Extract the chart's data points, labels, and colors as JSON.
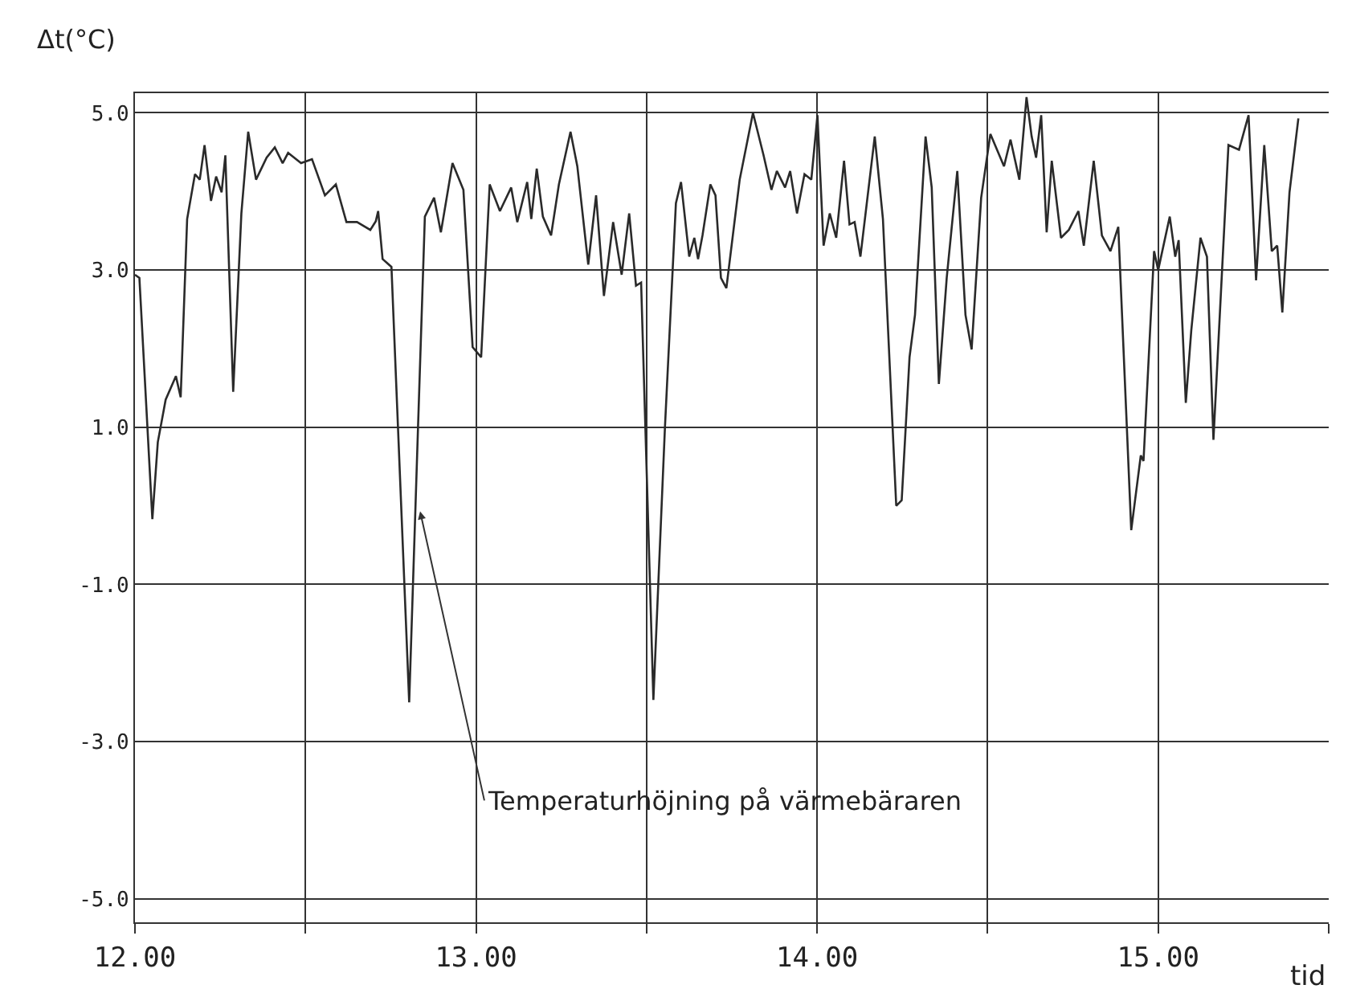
{
  "chart_data": {
    "type": "line",
    "ylabel": "Δt(°C)",
    "xlabel": "tid",
    "x": [
      12.0,
      12.013,
      12.051,
      12.067,
      12.09,
      12.12,
      12.134,
      12.153,
      12.176,
      12.19,
      12.204,
      12.223,
      12.238,
      12.254,
      12.265,
      12.288,
      12.312,
      12.332,
      12.355,
      12.386,
      12.41,
      12.433,
      12.449,
      12.487,
      12.519,
      12.557,
      12.589,
      12.62,
      12.651,
      12.69,
      12.706,
      12.713,
      12.726,
      12.752,
      12.804,
      12.83,
      12.85,
      12.877,
      12.897,
      12.931,
      12.963,
      12.99,
      13.015,
      13.04,
      13.07,
      13.103,
      13.121,
      13.15,
      13.162,
      13.178,
      13.196,
      13.22,
      13.243,
      13.277,
      13.297,
      13.329,
      13.352,
      13.375,
      13.402,
      13.427,
      13.449,
      13.469,
      13.484,
      13.52,
      13.554,
      13.586,
      13.601,
      13.625,
      13.64,
      13.651,
      13.664,
      13.687,
      13.702,
      13.718,
      13.734,
      13.773,
      13.812,
      13.843,
      13.866,
      13.882,
      13.906,
      13.921,
      13.941,
      13.963,
      13.983,
      14.001,
      14.019,
      14.037,
      14.056,
      14.079,
      14.095,
      14.11,
      14.127,
      14.169,
      14.193,
      14.232,
      14.248,
      14.271,
      14.287,
      14.318,
      14.336,
      14.357,
      14.38,
      14.411,
      14.435,
      14.453,
      14.481,
      14.508,
      14.548,
      14.567,
      14.593,
      14.614,
      14.629,
      14.642,
      14.657,
      14.673,
      14.688,
      14.715,
      14.738,
      14.766,
      14.782,
      14.811,
      14.835,
      14.86,
      14.883,
      14.921,
      14.949,
      14.957,
      14.988,
      15.0,
      15.034,
      15.05,
      15.06,
      15.081,
      15.097,
      15.124,
      15.143,
      15.162,
      15.206,
      15.237,
      15.265,
      15.287,
      15.311,
      15.333,
      15.349,
      15.364,
      15.385,
      15.411
    ],
    "values": [
      2.94,
      2.9,
      -0.17,
      0.81,
      1.35,
      1.65,
      1.38,
      3.65,
      4.22,
      4.15,
      4.59,
      3.88,
      4.19,
      3.99,
      4.46,
      1.45,
      3.72,
      4.76,
      4.15,
      4.43,
      4.56,
      4.36,
      4.49,
      4.36,
      4.41,
      3.95,
      4.09,
      3.61,
      3.61,
      3.51,
      3.62,
      3.75,
      3.14,
      3.04,
      -2.5,
      1.01,
      3.68,
      3.92,
      3.48,
      4.36,
      4.02,
      2.02,
      1.89,
      4.09,
      3.75,
      4.05,
      3.61,
      4.12,
      3.65,
      4.29,
      3.68,
      3.44,
      4.09,
      4.76,
      4.32,
      3.07,
      3.95,
      2.67,
      3.61,
      2.94,
      3.72,
      2.8,
      2.84,
      -2.47,
      1.01,
      3.85,
      4.12,
      3.17,
      3.41,
      3.14,
      3.44,
      4.09,
      3.95,
      2.9,
      2.77,
      4.15,
      5.0,
      4.46,
      4.02,
      4.26,
      4.05,
      4.26,
      3.72,
      4.22,
      4.15,
      4.97,
      3.31,
      3.72,
      3.41,
      4.39,
      3.58,
      3.61,
      3.17,
      4.7,
      3.65,
      0.0,
      0.07,
      1.89,
      2.43,
      4.7,
      4.05,
      1.55,
      2.9,
      4.26,
      2.43,
      1.99,
      3.92,
      4.73,
      4.32,
      4.66,
      4.15,
      5.2,
      4.7,
      4.43,
      4.97,
      3.48,
      4.39,
      3.41,
      3.51,
      3.75,
      3.31,
      4.39,
      3.44,
      3.24,
      3.55,
      -0.31,
      0.64,
      0.57,
      3.24,
      3.0,
      3.68,
      3.17,
      3.38,
      1.31,
      2.23,
      3.41,
      3.17,
      0.84,
      4.59,
      4.53,
      4.97,
      2.87,
      4.59,
      3.24,
      3.31,
      2.46,
      3.99,
      4.93
    ],
    "color": "#2a2a2a",
    "xlim": [
      12.0,
      15.5
    ],
    "ylim": [
      -5.3,
      5.25
    ],
    "xticks": [
      {
        "value": 12.0,
        "label": "12.00"
      },
      {
        "value": 12.5,
        "label": null
      },
      {
        "value": 13.0,
        "label": "13.00"
      },
      {
        "value": 13.5,
        "label": null
      },
      {
        "value": 14.0,
        "label": "14.00"
      },
      {
        "value": 14.5,
        "label": null
      },
      {
        "value": 15.0,
        "label": "15.00"
      },
      {
        "value": 15.5,
        "label": null
      }
    ],
    "yticks": [
      {
        "value": 5.0,
        "label": "5.0"
      },
      {
        "value": 3.0,
        "label": "3.0"
      },
      {
        "value": 1.0,
        "label": "1.0"
      },
      {
        "value": -1.0,
        "label": "-1.0"
      },
      {
        "value": -3.0,
        "label": "-3.0"
      },
      {
        "value": -5.0,
        "label": "-5.0"
      }
    ],
    "grid": true,
    "marker": "none",
    "line_style": "solid",
    "annotations": [
      {
        "text": "Temperaturhöjning på värmebäraren",
        "x": 12.836,
        "y": -0.07
      }
    ]
  }
}
